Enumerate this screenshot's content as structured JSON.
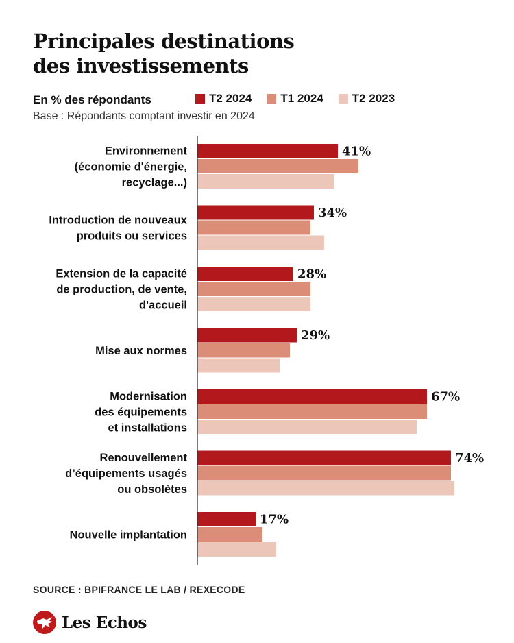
{
  "title": [
    "Principales destinations",
    "des investissements"
  ],
  "unit_label": "En % des répondants",
  "base_note": "Base : Répondants comptant investir en 2024",
  "source": "SOURCE : BPIFRANCE LE LAB / REXECODE",
  "brand": {
    "name": "Les Echos",
    "logo_icon": "les-echos-eagle-logo",
    "color": "#c0191c"
  },
  "colors": {
    "T2 2024": "#b3191c",
    "T1 2024": "#dc8d78",
    "T2 2023": "#ecc6b9",
    "axis": "#333333"
  },
  "chart_data": {
    "type": "bar",
    "orientation": "horizontal",
    "value_unit": "%",
    "categories": [
      [
        "Environnement",
        "(économie d'énergie,",
        "recyclage...)"
      ],
      [
        "Introduction de nouveaux",
        "produits ou services"
      ],
      [
        "Extension de la capacité",
        "de production, de vente,",
        "d'accueil"
      ],
      [
        "Mise aux normes"
      ],
      [
        "Modernisation",
        "des équipements",
        "et installations"
      ],
      [
        "Renouvellement",
        "d’équipements usagés",
        "ou obsolètes"
      ],
      [
        "Nouvelle implantation"
      ]
    ],
    "series": [
      {
        "name": "T2 2024",
        "values": [
          41,
          34,
          28,
          29,
          67,
          74,
          17
        ]
      },
      {
        "name": "T1 2024",
        "values": [
          47,
          33,
          33,
          27,
          67,
          74,
          19
        ]
      },
      {
        "name": "T2 2023",
        "values": [
          40,
          37,
          33,
          24,
          64,
          75,
          23
        ]
      }
    ],
    "data_labels": {
      "series": "T2 2024",
      "values": [
        "41%",
        "34%",
        "28%",
        "29%",
        "67%",
        "74%",
        "17%"
      ]
    },
    "xlim": [
      0,
      100
    ],
    "legend": "top",
    "grid": false
  }
}
